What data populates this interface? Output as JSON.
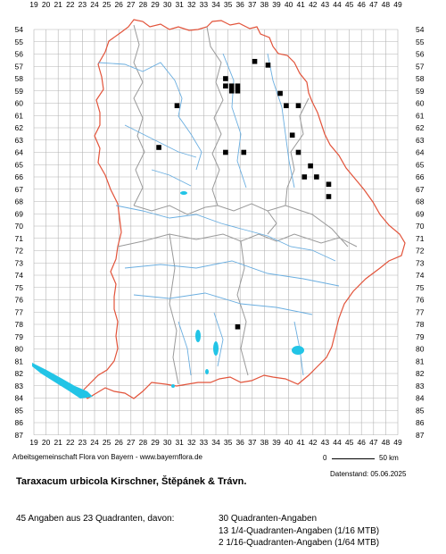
{
  "map": {
    "x_labels": [
      "19",
      "20",
      "21",
      "22",
      "23",
      "24",
      "25",
      "26",
      "27",
      "28",
      "29",
      "30",
      "31",
      "32",
      "33",
      "34",
      "35",
      "36",
      "37",
      "38",
      "39",
      "40",
      "41",
      "42",
      "43",
      "44",
      "45",
      "46",
      "47",
      "48",
      "49"
    ],
    "y_labels": [
      "54",
      "55",
      "56",
      "57",
      "58",
      "59",
      "60",
      "61",
      "62",
      "63",
      "64",
      "65",
      "66",
      "67",
      "68",
      "69",
      "70",
      "71",
      "72",
      "73",
      "74",
      "75",
      "76",
      "77",
      "78",
      "79",
      "80",
      "81",
      "82",
      "83",
      "84",
      "85",
      "86",
      "87"
    ],
    "occurrences": [
      {
        "col": 37.2,
        "row": 56.6
      },
      {
        "col": 38.3,
        "row": 56.9
      },
      {
        "col": 34.8,
        "row": 58.0
      },
      {
        "col": 34.8,
        "row": 58.6
      },
      {
        "col": 35.3,
        "row": 58.6
      },
      {
        "col": 35.8,
        "row": 58.6
      },
      {
        "col": 35.3,
        "row": 59.0
      },
      {
        "col": 35.8,
        "row": 59.0
      },
      {
        "col": 39.3,
        "row": 59.2
      },
      {
        "col": 30.8,
        "row": 60.2
      },
      {
        "col": 39.8,
        "row": 60.2
      },
      {
        "col": 40.8,
        "row": 60.2
      },
      {
        "col": 40.3,
        "row": 62.6
      },
      {
        "col": 29.3,
        "row": 63.6
      },
      {
        "col": 34.8,
        "row": 64.0
      },
      {
        "col": 36.3,
        "row": 64.0
      },
      {
        "col": 40.8,
        "row": 64.0
      },
      {
        "col": 41.8,
        "row": 65.1
      },
      {
        "col": 41.3,
        "row": 66.0
      },
      {
        "col": 42.3,
        "row": 66.0
      },
      {
        "col": 43.3,
        "row": 66.6
      },
      {
        "col": 43.3,
        "row": 67.6
      },
      {
        "col": 35.8,
        "row": 78.2
      }
    ],
    "colors": {
      "grid": "#b4b4b4",
      "border": "#e2533a",
      "districts": "#9a9a9a",
      "rivers": "#6aaee0",
      "lakes": "#22c4e6",
      "points": "#000000"
    }
  },
  "footer": {
    "credit": "Arbeitsgemeinschaft Flora von Bayern - www.bayernflora.de",
    "scale_start": "0",
    "scale_end": "50 km",
    "date": "Datenstand: 05.06.2025",
    "title": "Taraxacum urbicola Kirschner, Štěpánek & Trávn.",
    "summary": "45 Angaben aus 23 Quadranten, davon:",
    "detail_1": "30 Quadranten-Angaben",
    "detail_2": "13 1/4-Quadranten-Angaben (1/16 MTB)",
    "detail_3": "2 1/16-Quadranten-Angaben (1/64 MTB)"
  }
}
